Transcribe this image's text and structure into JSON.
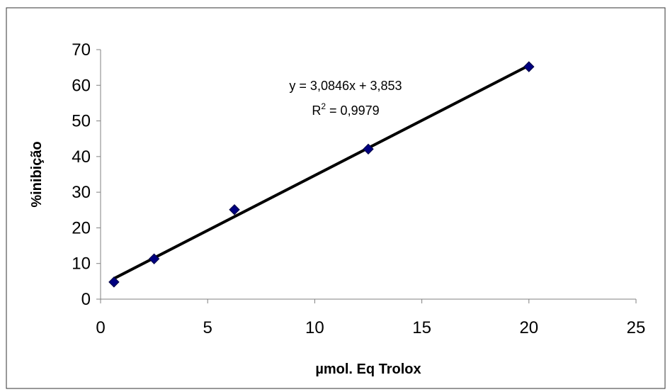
{
  "chart_data": {
    "type": "scatter",
    "xlabel": "µmol. Eq Trolox",
    "ylabel": "%inibição",
    "xlim": [
      0,
      25
    ],
    "ylim": [
      0,
      70
    ],
    "x_ticks": [
      "0",
      "5",
      "10",
      "15",
      "20",
      "25"
    ],
    "y_ticks": [
      "0",
      "10",
      "20",
      "30",
      "40",
      "50",
      "60",
      "70"
    ],
    "grid": false,
    "legend": "none",
    "points": [
      {
        "x": 0.625,
        "y": 4.8
      },
      {
        "x": 2.5,
        "y": 11.3
      },
      {
        "x": 6.25,
        "y": 25.1
      },
      {
        "x": 12.5,
        "y": 42.1
      },
      {
        "x": 20,
        "y": 65.2
      }
    ],
    "trendline": {
      "type": "linear",
      "slope": 3.0846,
      "intercept": 3.853,
      "x_range": [
        0.625,
        20
      ],
      "equation": "y = 3,0846x + 3,853",
      "r2_label": "R",
      "r2_sup": "2",
      "r2_value": " = 0,9979"
    },
    "colors": {
      "marker": "#000080",
      "trendline": "#000000",
      "axis": "#808080"
    }
  }
}
